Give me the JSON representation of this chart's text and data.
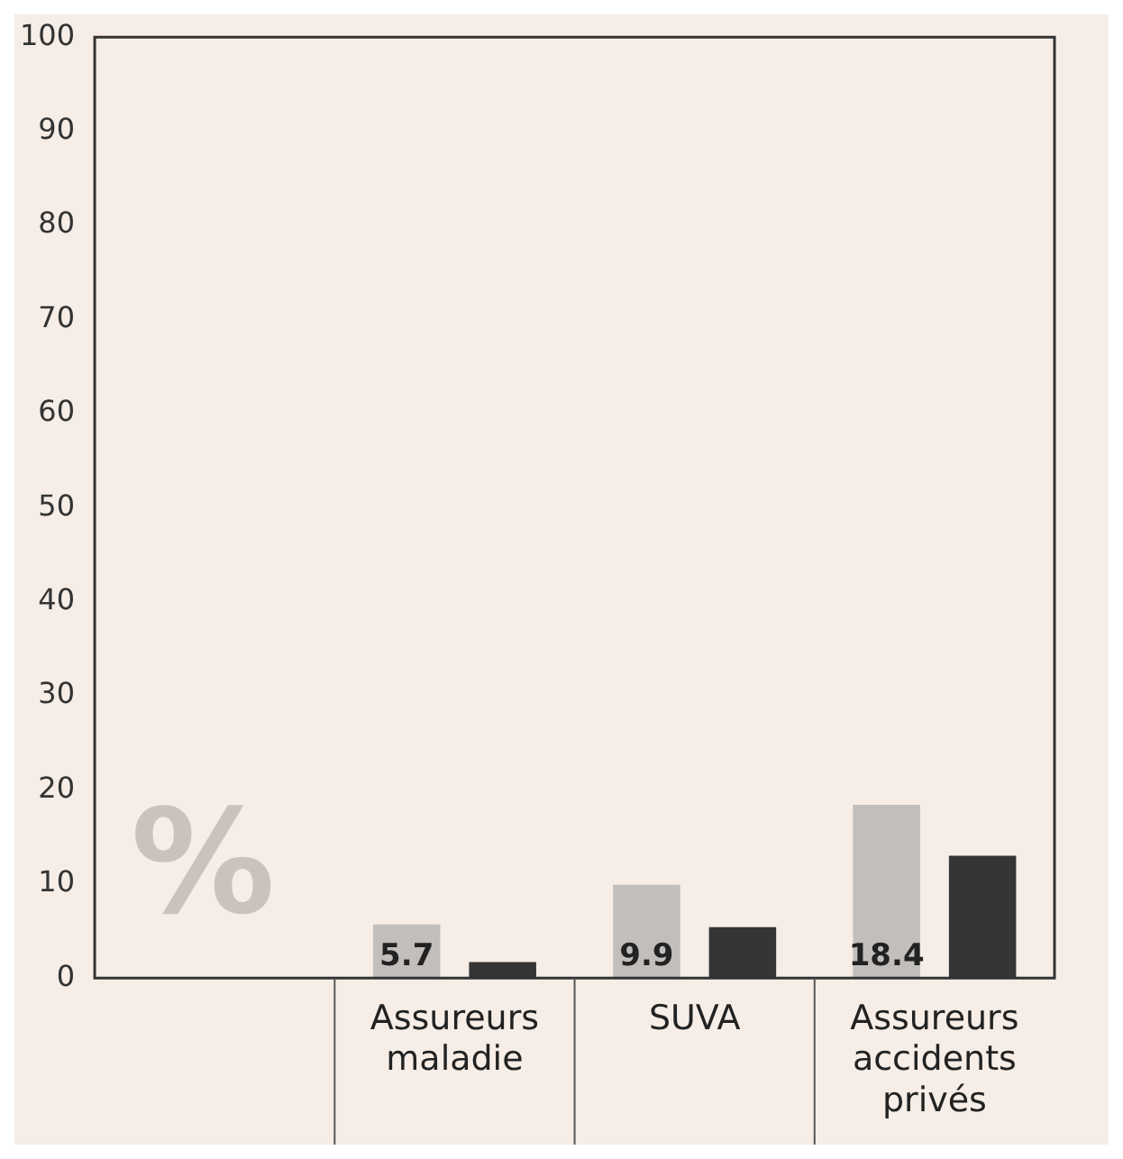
{
  "chart_data": {
    "type": "bar",
    "ylabel": "%",
    "categories": [
      null,
      "Assureurs maladie",
      "SUVA",
      "Assureurs accidents privés"
    ],
    "series": [
      {
        "color": "#c2bebb",
        "values": [
          null,
          5.7,
          9.9,
          18.4
        ],
        "value_labels": [
          null,
          "5.7",
          "9.9",
          "18.4"
        ]
      },
      {
        "color": "#353535",
        "values": [
          null,
          1.7,
          5.4,
          13
        ]
      }
    ],
    "ylim": [
      0,
      100
    ],
    "yticks": [
      0,
      10,
      20,
      30,
      40,
      50,
      60,
      70,
      80,
      90,
      100
    ],
    "grid": false,
    "legend": false
  }
}
